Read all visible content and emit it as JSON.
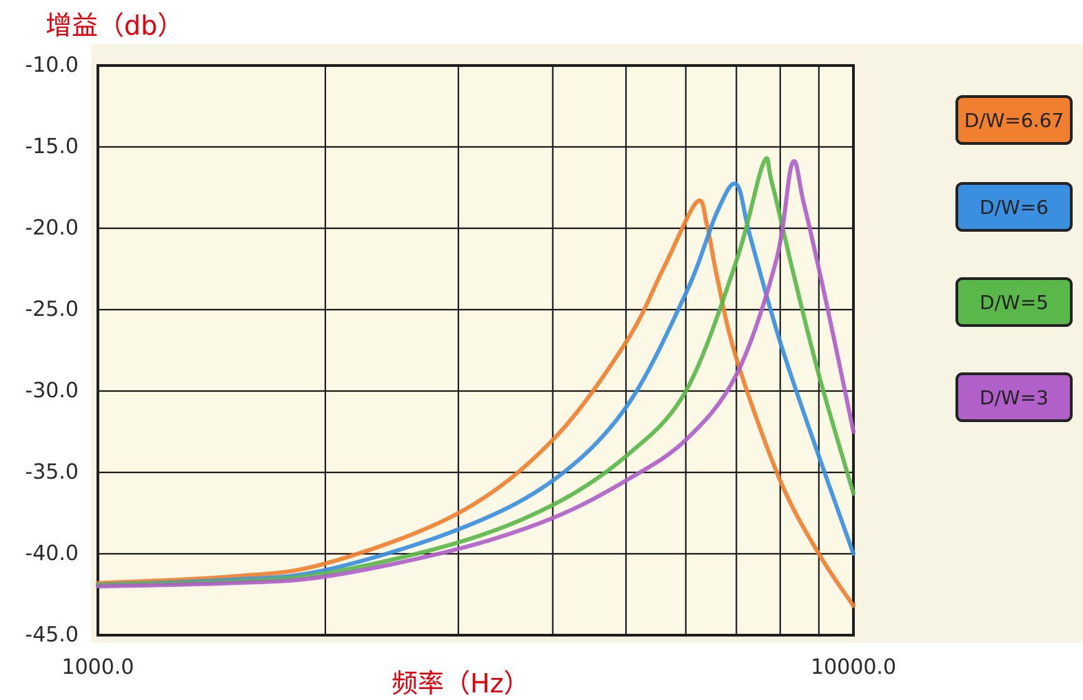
{
  "chart_data": {
    "type": "line",
    "title": "",
    "ylabel": "增益（db）",
    "xlabel": "频率（Hz）",
    "x_scale": "log",
    "xlim": [
      1000,
      10000
    ],
    "ylim": [
      -45,
      -10
    ],
    "yticks": [
      "-10.0",
      "-15.0",
      "-20.0",
      "-25.0",
      "-30.0",
      "-35.0",
      "-40.0",
      "-45.0"
    ],
    "xtick_labels": [
      "1000.0",
      "10000.0"
    ],
    "grid": true,
    "legend_position": "right",
    "series": [
      {
        "name": "D/W=6.67",
        "color": "#f08030",
        "x": [
          1000,
          1500,
          2000,
          3000,
          4000,
          5000,
          5600,
          6200,
          6400,
          6600,
          7000,
          8000,
          9000,
          10000
        ],
        "y": [
          -41.8,
          -41.4,
          -40.6,
          -37.5,
          -33.0,
          -27.0,
          -22.5,
          -18.4,
          -19.8,
          -23.0,
          -28.0,
          -35.5,
          -40.0,
          -43.2
        ]
      },
      {
        "name": "D/W=6",
        "color": "#3b8fe0",
        "x": [
          1000,
          1500,
          2000,
          3000,
          4000,
          5000,
          6000,
          6600,
          7000,
          7300,
          8000,
          9000,
          10000
        ],
        "y": [
          -41.9,
          -41.6,
          -41.0,
          -38.5,
          -35.5,
          -31.0,
          -24.0,
          -19.0,
          -17.3,
          -20.5,
          -27.0,
          -34.0,
          -40.0
        ]
      },
      {
        "name": "D/W=5",
        "color": "#5ab84a",
        "x": [
          1000,
          1500,
          2000,
          3000,
          4000,
          5000,
          6000,
          7000,
          7600,
          7800,
          8300,
          9000,
          10000
        ],
        "y": [
          -41.9,
          -41.7,
          -41.2,
          -39.3,
          -37.0,
          -34.0,
          -30.0,
          -22.0,
          -16.0,
          -17.2,
          -22.5,
          -29.0,
          -36.3
        ]
      },
      {
        "name": "D/W=3",
        "color": "#b060c8",
        "x": [
          1000,
          1500,
          2000,
          3000,
          4000,
          5000,
          6000,
          7000,
          7900,
          8300,
          8600,
          9200,
          10000
        ],
        "y": [
          -42.0,
          -41.8,
          -41.4,
          -39.7,
          -37.8,
          -35.5,
          -33.0,
          -29.0,
          -22.0,
          -16.0,
          -18.5,
          -24.5,
          -32.5
        ]
      }
    ]
  }
}
